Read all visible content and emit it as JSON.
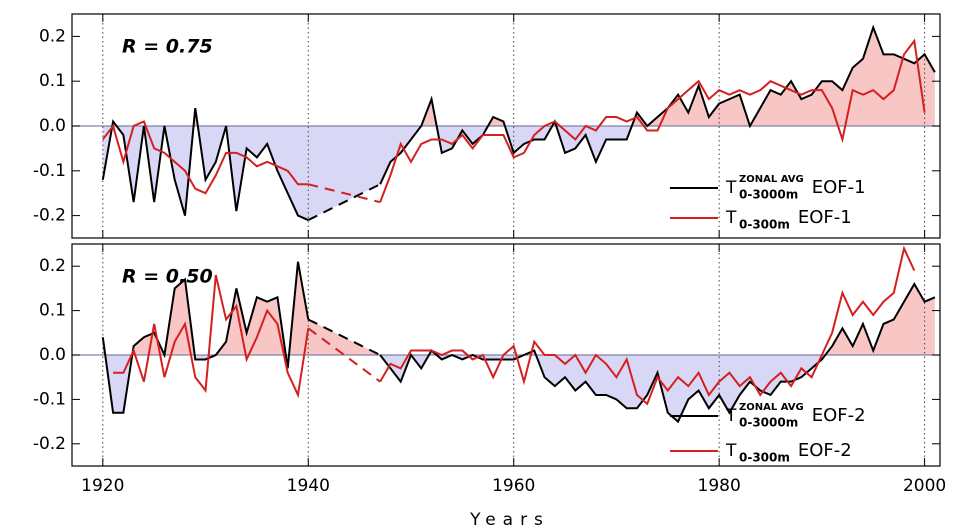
{
  "chart_data": [
    {
      "type": "line",
      "annotation": "R = 0.75",
      "x": [
        1920,
        1921,
        1922,
        1923,
        1924,
        1925,
        1926,
        1927,
        1928,
        1929,
        1930,
        1931,
        1932,
        1933,
        1934,
        1935,
        1936,
        1937,
        1938,
        1939,
        1940,
        1941,
        1942,
        1943,
        1944,
        1945,
        1946,
        1947,
        1948,
        1949,
        1950,
        1951,
        1952,
        1953,
        1954,
        1955,
        1956,
        1957,
        1958,
        1959,
        1960,
        1961,
        1962,
        1963,
        1964,
        1965,
        1966,
        1967,
        1968,
        1969,
        1970,
        1971,
        1972,
        1973,
        1974,
        1975,
        1976,
        1977,
        1978,
        1979,
        1980,
        1981,
        1982,
        1983,
        1984,
        1985,
        1986,
        1987,
        1988,
        1989,
        1990,
        1991,
        1992,
        1993,
        1994,
        1995,
        1996,
        1997,
        1998,
        1999,
        2000,
        2001
      ],
      "series": [
        {
          "name": "EOF-1",
          "symbol": {
            "base": "T",
            "sup": "ZONAL AVG",
            "sub": "0-3000m"
          },
          "color": "#000000",
          "values": [
            -0.12,
            0.01,
            -0.02,
            -0.17,
            0.0,
            -0.17,
            0.0,
            -0.12,
            -0.2,
            0.04,
            -0.12,
            -0.08,
            0.0,
            -0.19,
            -0.05,
            -0.07,
            -0.04,
            -0.1,
            -0.15,
            -0.2,
            -0.21,
            null,
            null,
            null,
            null,
            null,
            null,
            -0.13,
            -0.08,
            -0.06,
            -0.03,
            0.0,
            0.06,
            -0.06,
            -0.05,
            -0.01,
            -0.04,
            -0.02,
            0.02,
            0.01,
            -0.06,
            -0.04,
            -0.03,
            -0.03,
            0.01,
            -0.06,
            -0.05,
            -0.02,
            -0.08,
            -0.03,
            -0.03,
            -0.03,
            0.03,
            0.0,
            0.02,
            0.04,
            0.07,
            0.03,
            0.09,
            0.02,
            0.05,
            0.06,
            0.07,
            0.0,
            0.04,
            0.08,
            0.07,
            0.1,
            0.06,
            0.07,
            0.1,
            0.1,
            0.08,
            0.13,
            0.15,
            0.22,
            0.16,
            0.16,
            0.15,
            0.14,
            0.16,
            0.12
          ]
        },
        {
          "name": "EOF-1",
          "symbol": {
            "base": "T",
            "sub": "0-300m"
          },
          "color": "#d42020",
          "values": [
            -0.03,
            0.0,
            -0.08,
            0.0,
            0.01,
            -0.05,
            -0.06,
            -0.08,
            -0.1,
            -0.14,
            -0.15,
            -0.11,
            -0.06,
            -0.06,
            -0.07,
            -0.09,
            -0.08,
            -0.09,
            -0.1,
            -0.13,
            -0.13,
            null,
            null,
            null,
            null,
            null,
            null,
            -0.17,
            -0.11,
            -0.04,
            -0.08,
            -0.04,
            -0.03,
            -0.03,
            -0.04,
            -0.02,
            -0.05,
            -0.02,
            -0.02,
            -0.02,
            -0.07,
            -0.06,
            -0.02,
            0.0,
            0.01,
            -0.01,
            -0.03,
            0.0,
            -0.01,
            0.02,
            0.02,
            0.01,
            0.02,
            -0.01,
            -0.01,
            0.04,
            0.06,
            0.08,
            0.1,
            0.06,
            0.08,
            0.07,
            0.08,
            0.07,
            0.08,
            0.1,
            0.09,
            0.08,
            0.07,
            0.08,
            0.08,
            0.04,
            -0.03,
            0.08,
            0.07,
            0.08,
            0.06,
            0.08,
            0.16,
            0.19,
            0.03,
            null
          ]
        }
      ],
      "xlim": [
        1917,
        2001.5
      ],
      "xticks": [
        1920,
        1940,
        1960,
        1980,
        2000
      ],
      "xtick_labels": false,
      "ylim": [
        -0.25,
        0.25
      ],
      "yticks": [
        -0.2,
        -0.1,
        {
          "value": 0,
          "label": "0.0"
        },
        0.1,
        0.2
      ],
      "xgrid": true,
      "gap_style": "dashed",
      "shade": {
        "above": "#f9c6c6",
        "below": "#d8d8f6"
      }
    },
    {
      "type": "line",
      "annotation": "R = 0.50",
      "xlabel": "Years",
      "x": [
        1920,
        1921,
        1922,
        1923,
        1924,
        1925,
        1926,
        1927,
        1928,
        1929,
        1930,
        1931,
        1932,
        1933,
        1934,
        1935,
        1936,
        1937,
        1938,
        1939,
        1940,
        1941,
        1942,
        1943,
        1944,
        1945,
        1946,
        1947,
        1948,
        1949,
        1950,
        1951,
        1952,
        1953,
        1954,
        1955,
        1956,
        1957,
        1958,
        1959,
        1960,
        1961,
        1962,
        1963,
        1964,
        1965,
        1966,
        1967,
        1968,
        1969,
        1970,
        1971,
        1972,
        1973,
        1974,
        1975,
        1976,
        1977,
        1978,
        1979,
        1980,
        1981,
        1982,
        1983,
        1984,
        1985,
        1986,
        1987,
        1988,
        1989,
        1990,
        1991,
        1992,
        1993,
        1994,
        1995,
        1996,
        1997,
        1998,
        1999,
        2000,
        2001
      ],
      "series": [
        {
          "name": "EOF-2",
          "symbol": {
            "base": "T",
            "sup": "ZONAL AVG",
            "sub": "0-3000m"
          },
          "color": "#000000",
          "values": [
            0.04,
            -0.13,
            -0.13,
            0.02,
            0.04,
            0.05,
            0.0,
            0.15,
            0.17,
            -0.01,
            -0.01,
            0.0,
            0.03,
            0.15,
            0.05,
            0.13,
            0.12,
            0.13,
            -0.03,
            0.21,
            0.08,
            null,
            null,
            null,
            null,
            null,
            null,
            0.0,
            -0.03,
            -0.06,
            0.0,
            -0.03,
            0.01,
            -0.01,
            0.0,
            -0.01,
            0.0,
            -0.01,
            -0.01,
            -0.01,
            -0.01,
            0.0,
            0.01,
            -0.05,
            -0.07,
            -0.05,
            -0.08,
            -0.06,
            -0.09,
            -0.09,
            -0.1,
            -0.12,
            -0.12,
            -0.09,
            -0.04,
            -0.13,
            -0.15,
            -0.1,
            -0.08,
            -0.12,
            -0.09,
            -0.13,
            -0.09,
            -0.06,
            -0.08,
            -0.09,
            -0.06,
            -0.06,
            -0.05,
            -0.03,
            -0.01,
            0.02,
            0.06,
            0.02,
            0.07,
            0.01,
            0.07,
            0.08,
            0.12,
            0.16,
            0.12,
            0.13
          ]
        },
        {
          "name": "EOF-2",
          "symbol": {
            "base": "T",
            "sub": "0-300m"
          },
          "color": "#d42020",
          "values": [
            null,
            -0.04,
            -0.04,
            0.01,
            -0.06,
            0.07,
            -0.05,
            0.03,
            0.07,
            -0.05,
            -0.08,
            0.18,
            0.08,
            0.11,
            -0.01,
            0.04,
            0.1,
            0.07,
            -0.04,
            -0.09,
            0.06,
            null,
            null,
            null,
            null,
            null,
            null,
            -0.06,
            -0.02,
            -0.03,
            0.01,
            0.01,
            0.01,
            0.0,
            0.01,
            0.01,
            -0.01,
            0.0,
            -0.05,
            0.0,
            0.02,
            -0.06,
            0.03,
            0.0,
            0.0,
            -0.02,
            0.0,
            -0.04,
            0.0,
            -0.02,
            -0.05,
            -0.01,
            -0.09,
            -0.11,
            -0.05,
            -0.08,
            -0.05,
            -0.07,
            -0.04,
            -0.09,
            -0.06,
            -0.04,
            -0.07,
            -0.05,
            -0.09,
            -0.06,
            -0.04,
            -0.07,
            -0.03,
            -0.05,
            0.0,
            0.05,
            0.14,
            0.09,
            0.12,
            0.09,
            0.12,
            0.14,
            0.24,
            0.19,
            null,
            null
          ]
        }
      ],
      "xlim": [
        1917,
        2001.5
      ],
      "xticks": [
        1920,
        1940,
        1960,
        1980,
        2000
      ],
      "xtick_labels": true,
      "ylim": [
        -0.25,
        0.25
      ],
      "yticks": [
        -0.2,
        -0.1,
        {
          "value": 0,
          "label": "0.0"
        },
        0.1,
        0.2
      ],
      "xgrid": true,
      "gap_style": "dashed",
      "shade": {
        "above": "#f9c6c6",
        "below": "#d8d8f6"
      }
    }
  ]
}
